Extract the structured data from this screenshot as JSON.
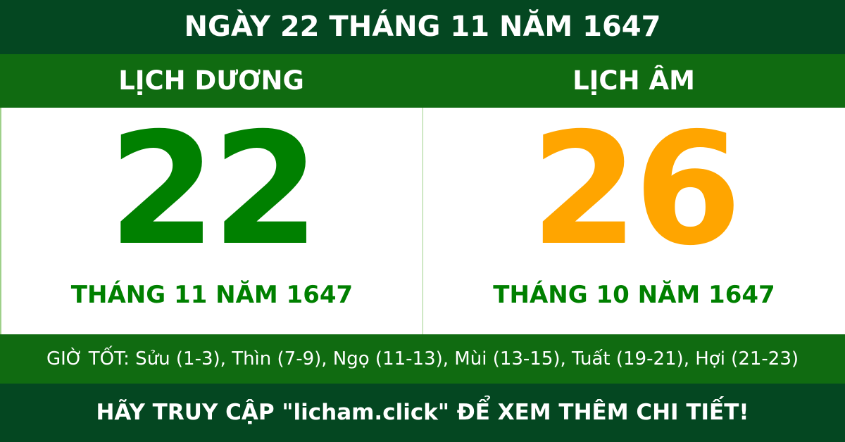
{
  "title": "NGÀY 22 THÁNG 11 NĂM 1647",
  "solar": {
    "heading": "LỊCH DƯƠNG",
    "day": "22",
    "month_year": "THÁNG 11 NĂM 1647"
  },
  "lunar": {
    "heading": "LỊCH ÂM",
    "day": "26",
    "month_year": "THÁNG 10 NĂM 1647"
  },
  "good_hours": "GIỜ TỐT: Sửu (1-3), Thìn (7-9), Ngọ (11-13), Mùi (13-15), Tuất (19-21), Hợi (21-23)",
  "footer": "HÃY TRUY CẬP \"licham.click\" ĐỂ XEM THÊM CHI TIẾT!",
  "colors": {
    "dark_green": "#044721",
    "green": "#106b11",
    "solar_day": "#008000",
    "lunar_day": "#ffa500"
  }
}
